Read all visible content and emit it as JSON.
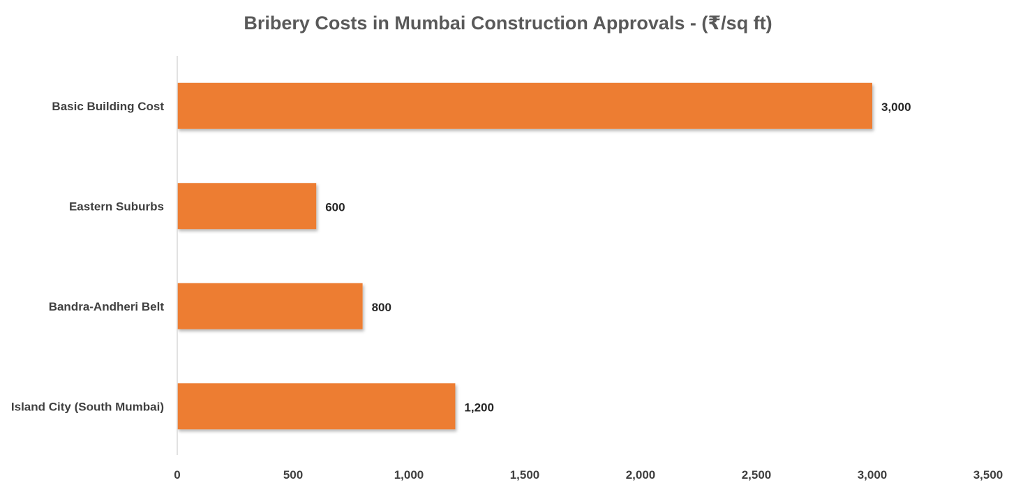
{
  "chart_data": {
    "type": "bar",
    "orientation": "horizontal",
    "title": "Bribery Costs in Mumbai Construction Approvals - (₹/sq ft)",
    "categories": [
      "Basic Building Cost",
      "Eastern Suburbs",
      "Bandra-Andheri Belt",
      "Island City (South Mumbai)"
    ],
    "values": [
      3000,
      600,
      800,
      1200
    ],
    "data_labels": [
      "3,000",
      "600",
      "800",
      "1,200"
    ],
    "xlim": [
      0,
      3500
    ],
    "x_ticks": [
      0,
      500,
      1000,
      1500,
      2000,
      2500,
      3000,
      3500
    ],
    "x_tick_labels": [
      "0",
      "500",
      "1,000",
      "1,500",
      "2,000",
      "2,500",
      "3,000",
      "3,500"
    ],
    "xlabel": "",
    "ylabel": "",
    "grid": false,
    "legend": "none",
    "bar_color": "#ED7D31",
    "axis_color": "#D9D9D9"
  }
}
